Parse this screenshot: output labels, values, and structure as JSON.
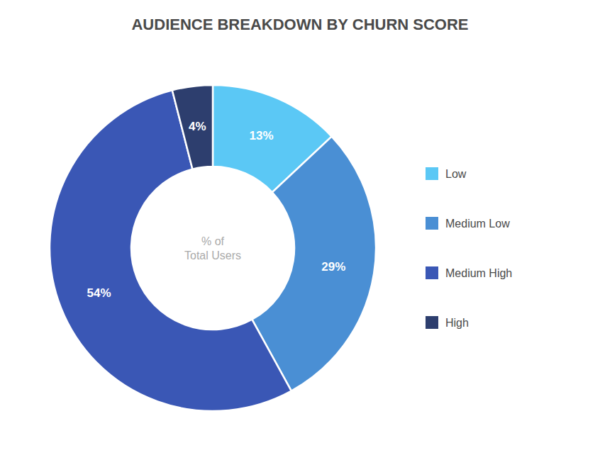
{
  "chart_data": {
    "type": "pie",
    "title": "AUDIENCE BREAKDOWN BY CHURN SCORE",
    "annotations": [
      "% of\nTotal Users"
    ],
    "categories": [
      "Low",
      "Medium Low",
      "Medium High",
      "High"
    ],
    "values": [
      13,
      29,
      54,
      4
    ],
    "value_labels": [
      "13%",
      "29%",
      "54%",
      "4%"
    ],
    "colors": [
      "#5bc8f5",
      "#4a8fd4",
      "#3a57b5",
      "#2d3e6e"
    ],
    "data_labels": true,
    "legend": "right"
  }
}
